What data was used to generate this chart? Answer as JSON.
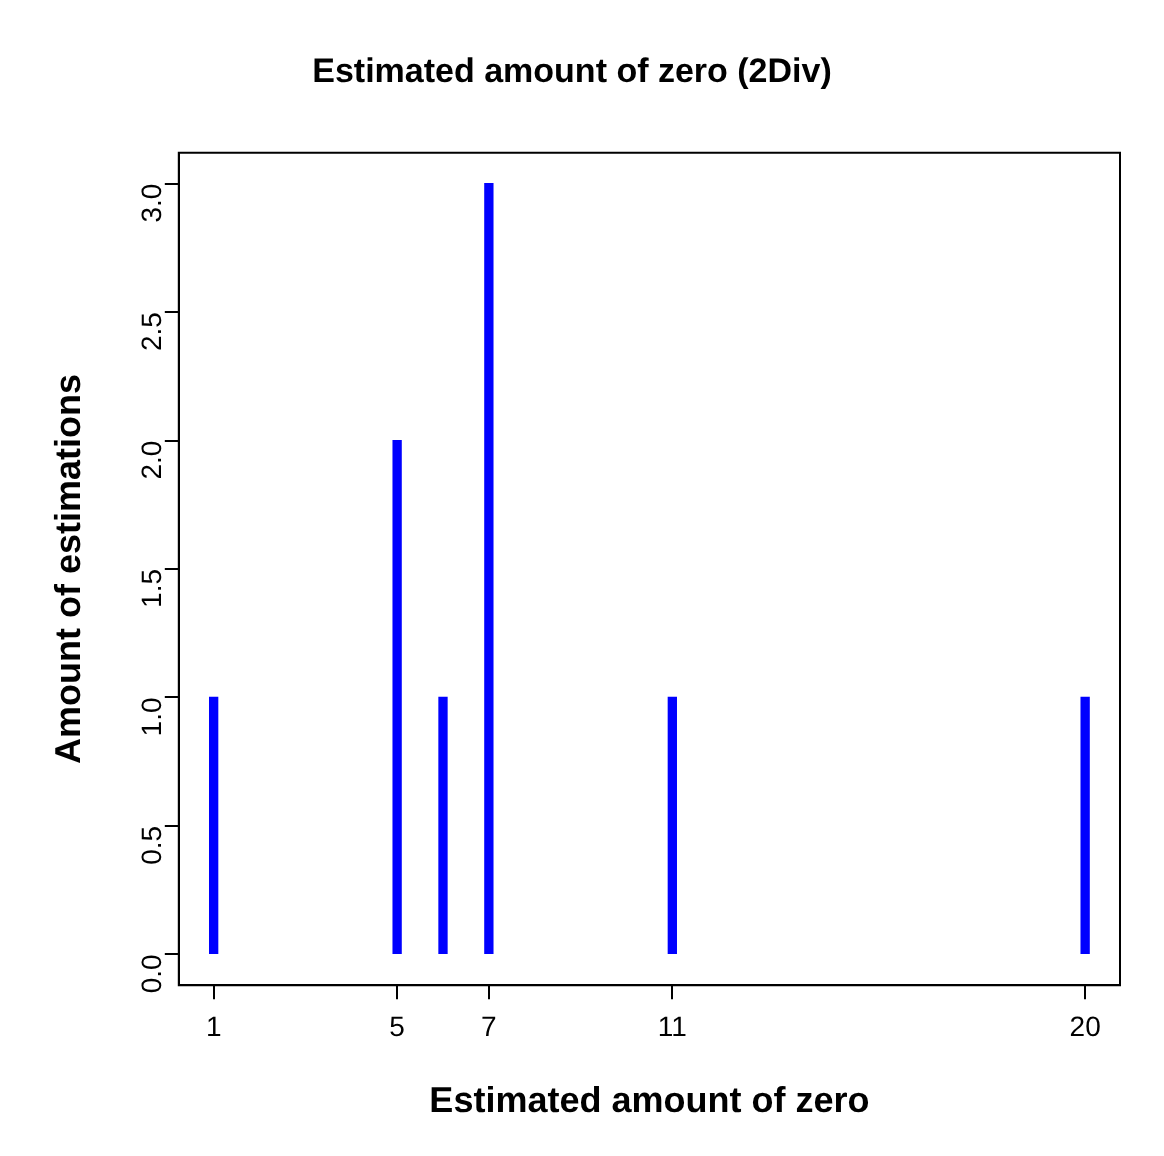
{
  "chart_data": {
    "type": "bar",
    "title": "Estimated amount of zero (2Div)",
    "xlabel": "Estimated amount of zero",
    "ylabel": "Amount of estimations",
    "x": [
      1,
      5,
      6,
      7,
      11,
      20
    ],
    "values": [
      1,
      2,
      1,
      3,
      1,
      1
    ],
    "color": "#0000ff",
    "xlim": [
      0.24,
      20.76
    ],
    "xticks": [
      1,
      5,
      7,
      11,
      20
    ],
    "ylim": [
      -0.12,
      3.12
    ],
    "yticks": [
      {
        "value": 0,
        "label": "0.0"
      },
      {
        "value": 0.5,
        "label": "0.5"
      },
      {
        "value": 1,
        "label": "1.0"
      },
      {
        "value": 1.5,
        "label": "1.5"
      },
      {
        "value": 2,
        "label": "2.0"
      },
      {
        "value": 2.5,
        "label": "2.5"
      },
      {
        "value": 3,
        "label": "3.0"
      }
    ]
  }
}
